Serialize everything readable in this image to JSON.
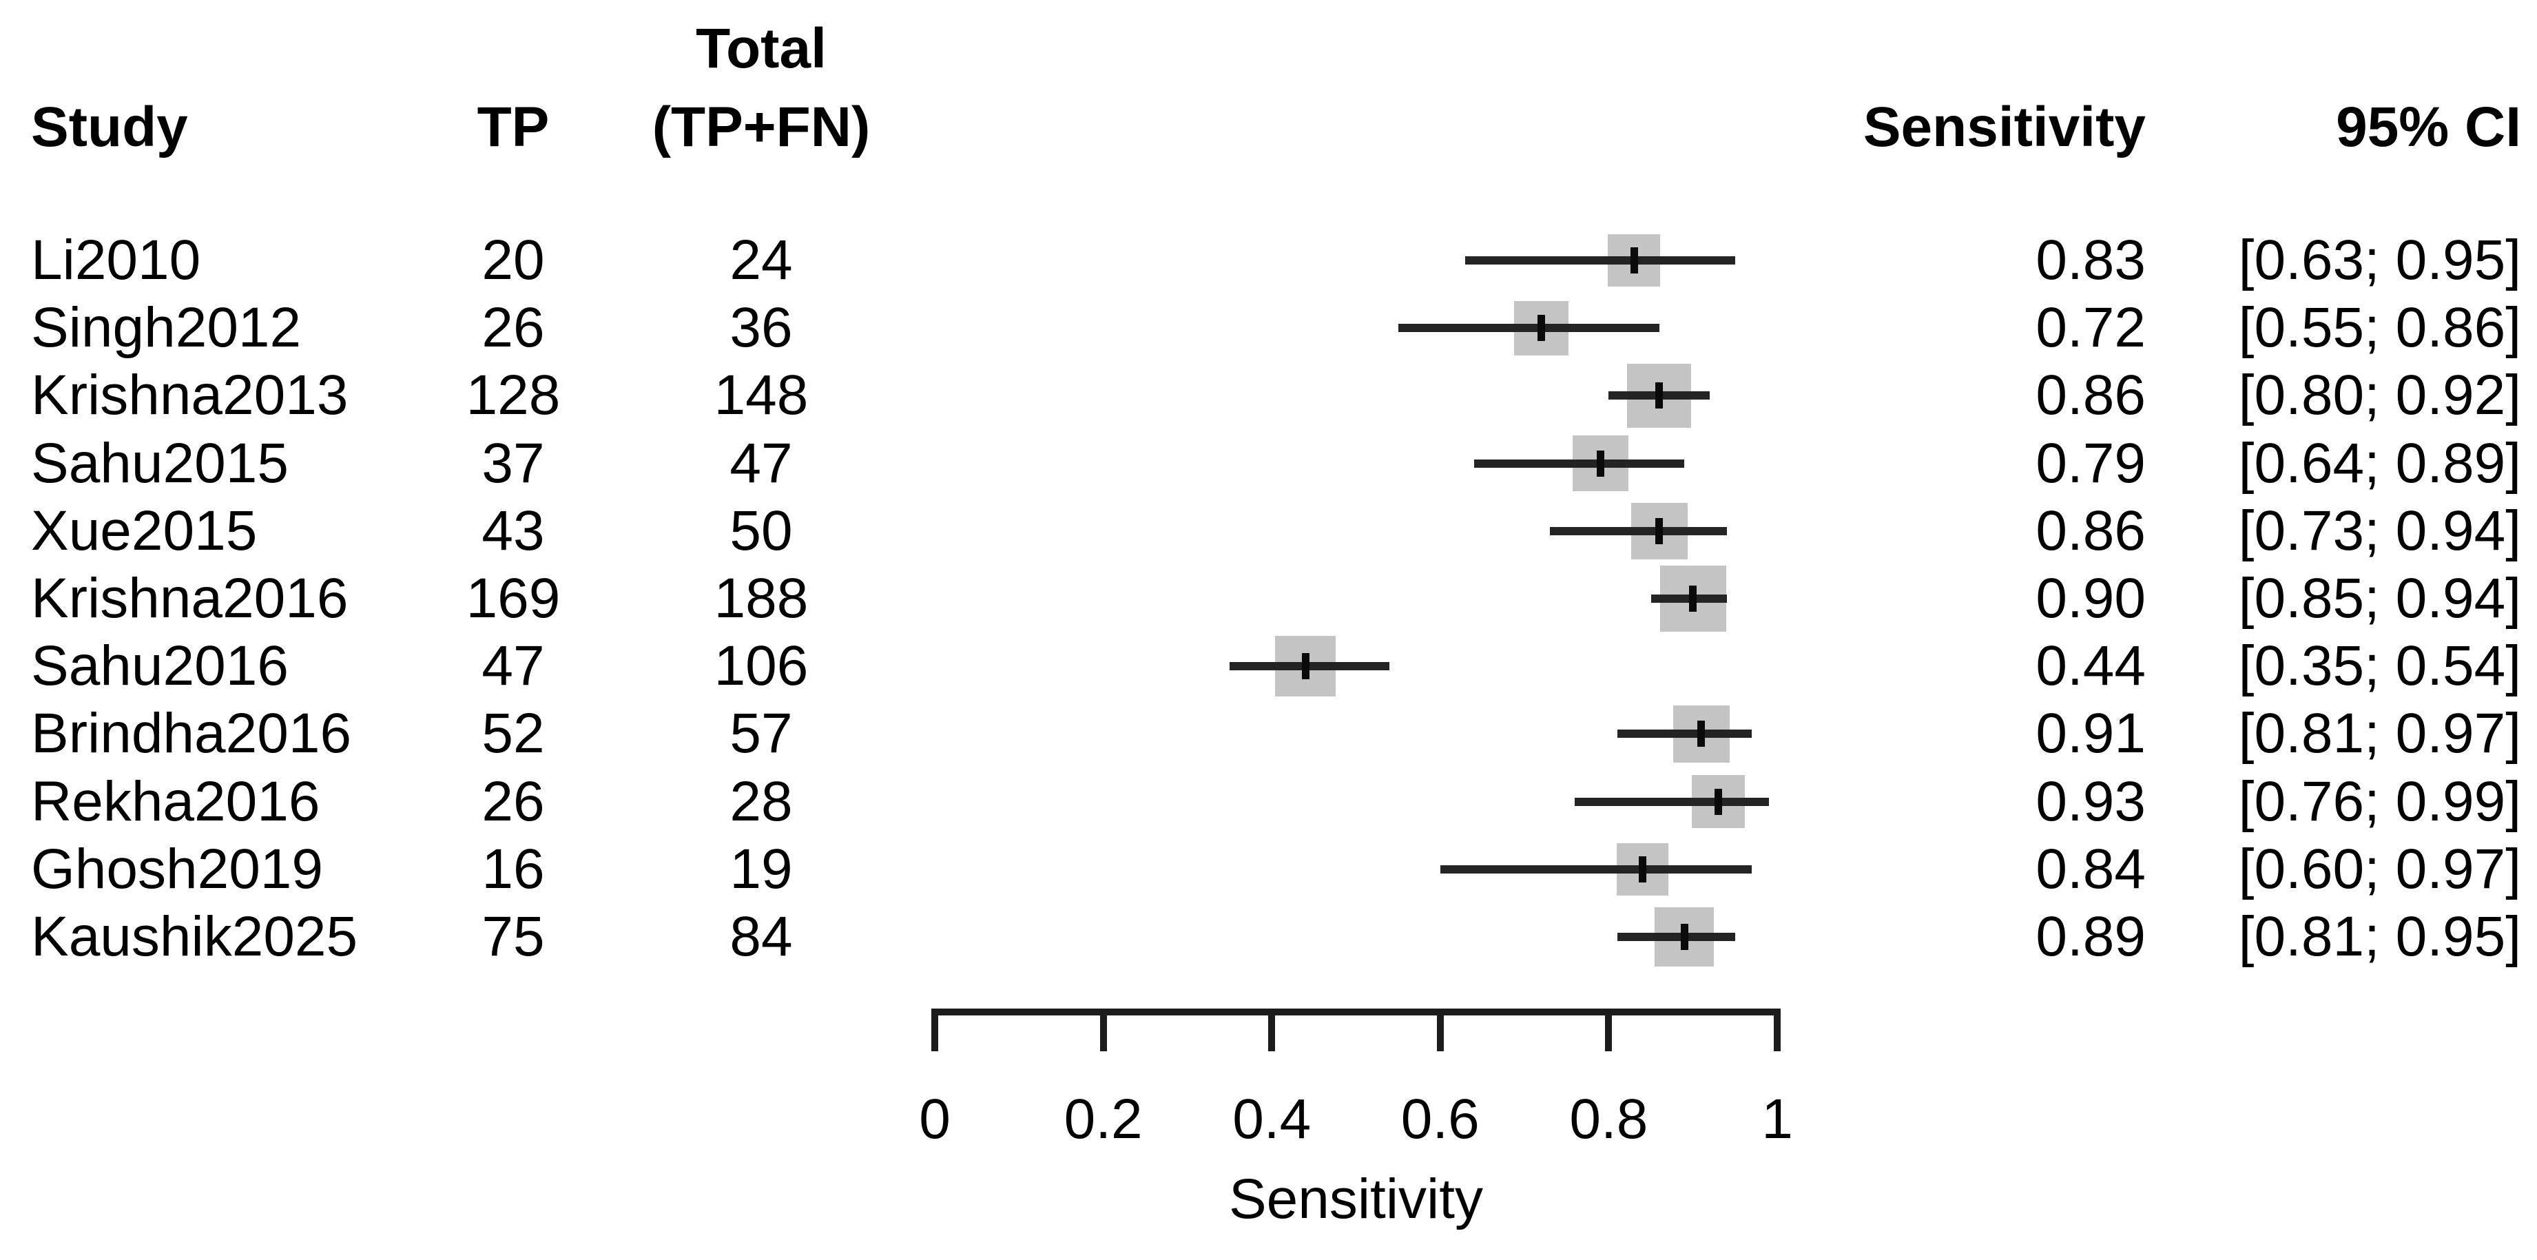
{
  "header": {
    "study": "Study",
    "tp": "TP",
    "total_line1": "Total",
    "total_line2": "(TP+FN)",
    "sensitivity": "Sensitivity",
    "ci": "95% CI"
  },
  "colors": {
    "text": "#000000",
    "square": "#c4c4c4",
    "ci_line": "#242424",
    "estimate_tick": "#0a0a0a",
    "axis": "#1c1c1c",
    "background": "#ffffff"
  },
  "chart_data": {
    "type": "forest",
    "xlabel": "Sensitivity",
    "xlim": [
      0,
      1
    ],
    "x_ticks": [
      0,
      0.2,
      0.4,
      0.6,
      0.8,
      1
    ],
    "x_tick_labels": [
      "0",
      "0.2",
      "0.4",
      "0.6",
      "0.8",
      "1"
    ],
    "grid": false,
    "legend": false,
    "studies": [
      {
        "study": "Li2010",
        "tp": 20,
        "total": 24,
        "sensitivity": 0.83,
        "sensitivity_label": "0.83",
        "ci": [
          0.63,
          0.95
        ],
        "ci_label": "[0.63; 0.95]"
      },
      {
        "study": "Singh2012",
        "tp": 26,
        "total": 36,
        "sensitivity": 0.72,
        "sensitivity_label": "0.72",
        "ci": [
          0.55,
          0.86
        ],
        "ci_label": "[0.55; 0.86]"
      },
      {
        "study": "Krishna2013",
        "tp": 128,
        "total": 148,
        "sensitivity": 0.86,
        "sensitivity_label": "0.86",
        "ci": [
          0.8,
          0.92
        ],
        "ci_label": "[0.80; 0.92]"
      },
      {
        "study": "Sahu2015",
        "tp": 37,
        "total": 47,
        "sensitivity": 0.79,
        "sensitivity_label": "0.79",
        "ci": [
          0.64,
          0.89
        ],
        "ci_label": "[0.64; 0.89]"
      },
      {
        "study": "Xue2015",
        "tp": 43,
        "total": 50,
        "sensitivity": 0.86,
        "sensitivity_label": "0.86",
        "ci": [
          0.73,
          0.94
        ],
        "ci_label": "[0.73; 0.94]"
      },
      {
        "study": "Krishna2016",
        "tp": 169,
        "total": 188,
        "sensitivity": 0.9,
        "sensitivity_label": "0.90",
        "ci": [
          0.85,
          0.94
        ],
        "ci_label": "[0.85; 0.94]"
      },
      {
        "study": "Sahu2016",
        "tp": 47,
        "total": 106,
        "sensitivity": 0.44,
        "sensitivity_label": "0.44",
        "ci": [
          0.35,
          0.54
        ],
        "ci_label": "[0.35; 0.54]"
      },
      {
        "study": "Brindha2016",
        "tp": 52,
        "total": 57,
        "sensitivity": 0.91,
        "sensitivity_label": "0.91",
        "ci": [
          0.81,
          0.97
        ],
        "ci_label": "[0.81; 0.97]"
      },
      {
        "study": "Rekha2016",
        "tp": 26,
        "total": 28,
        "sensitivity": 0.93,
        "sensitivity_label": "0.93",
        "ci": [
          0.76,
          0.99
        ],
        "ci_label": "[0.76; 0.99]"
      },
      {
        "study": "Ghosh2019",
        "tp": 16,
        "total": 19,
        "sensitivity": 0.84,
        "sensitivity_label": "0.84",
        "ci": [
          0.6,
          0.97
        ],
        "ci_label": "[0.60; 0.97]"
      },
      {
        "study": "Kaushik2025",
        "tp": 75,
        "total": 84,
        "sensitivity": 0.89,
        "sensitivity_label": "0.89",
        "ci": [
          0.81,
          0.95
        ],
        "ci_label": "[0.81; 0.95]"
      }
    ]
  }
}
